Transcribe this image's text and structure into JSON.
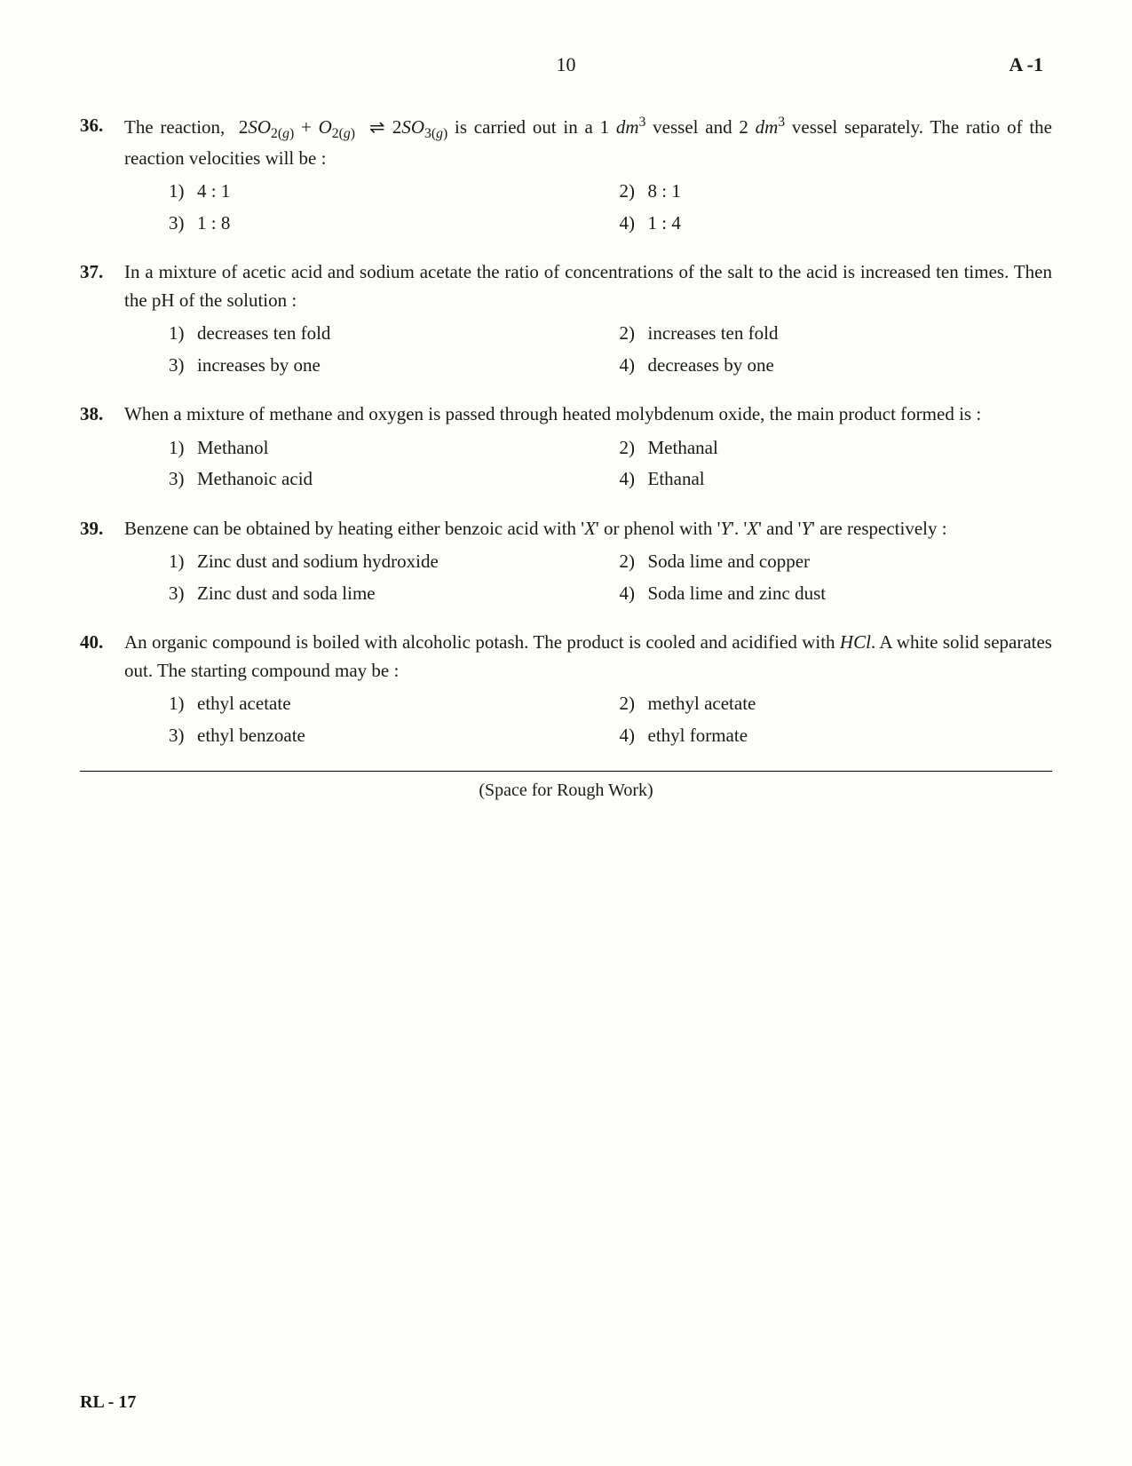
{
  "header": {
    "page_number": "10",
    "paper_code": "A -1"
  },
  "questions": [
    {
      "number": "36.",
      "text_html": "The reaction, &nbsp;2<span class='ital'>SO</span><span class='sub'>2(<span class='ital'>g</span>)</span> + <span class='ital'>O</span><span class='sub'>2(<span class='ital'>g</span>)</span> <span class='eqarrow'>&#8652;</span>2<span class='ital'>SO</span><span class='sub'>3(<span class='ital'>g</span>)</span> is carried out in a 1 <span class='ital'>dm</span><span class='sup'>3</span> vessel and 2 <span class='ital'>dm</span><span class='sup'>3</span> vessel separately. The ratio of the reaction velocities will be :",
      "options": [
        "4 : 1",
        "8 : 1",
        "1 : 8",
        "1 : 4"
      ]
    },
    {
      "number": "37.",
      "text_html": "In a mixture of acetic acid and sodium acetate the ratio of concentrations of the salt to the acid is increased ten times. Then the pH of the solution :",
      "options": [
        "decreases ten fold",
        "increases ten fold",
        "increases by one",
        "decreases by one"
      ]
    },
    {
      "number": "38.",
      "text_html": "When a mixture of methane and oxygen is passed through heated molybdenum oxide, the main product formed is :",
      "options": [
        "Methanol",
        "Methanal",
        "Methanoic acid",
        "Ethanal"
      ]
    },
    {
      "number": "39.",
      "text_html": "Benzene can be obtained by heating either benzoic acid with '<span class='ital'>X</span>' or phenol with '<span class='ital'>Y</span>'. '<span class='ital'>X</span>' and '<span class='ital'>Y</span>' are respectively :",
      "options": [
        "Zinc dust and sodium hydroxide",
        "Soda lime and copper",
        "Zinc dust and soda lime",
        "Soda lime and zinc dust"
      ]
    },
    {
      "number": "40.",
      "text_html": "An organic compound is boiled with alcoholic potash. The product is cooled and acidified with <span class='ital'>HCl</span>. A white solid separates out. The starting compound may be :",
      "options": [
        "ethyl acetate",
        "methyl acetate",
        "ethyl benzoate",
        "ethyl formate"
      ]
    }
  ],
  "rough_work_label": "(Space for Rough Work)",
  "footer_code": "RL - 17",
  "option_labels": [
    "1)",
    "2)",
    "3)",
    "4)"
  ]
}
